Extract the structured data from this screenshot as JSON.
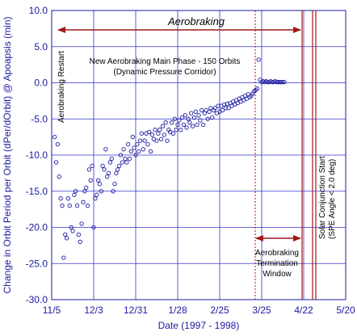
{
  "chart_data": {
    "type": "scatter",
    "xlabel": "Date (1997 - 1998)",
    "ylabel": "Change in Orbit Period per Orbit (dPer/dOrbit) @ Apoapsis (min)",
    "ylim": [
      -30,
      10
    ],
    "yticks": [
      "10.0",
      "5.0",
      "0.0",
      "-5.0",
      "-10.0",
      "-15.0",
      "-20.0",
      "-25.0",
      "-30.0"
    ],
    "xticks": [
      "11/5",
      "12/3",
      "12/31",
      "1/28",
      "2/25",
      "3/25",
      "4/22",
      "5/20"
    ],
    "grid": true,
    "colors": {
      "axis": "#1a1aa0",
      "grid": "#3333cc",
      "marker": "#1a1aa0",
      "event_line": "#a01818",
      "arrow": "#a01818"
    },
    "annotations": {
      "aerobraking": "Aerobraking",
      "main_phase_1": "New Aerobraking Main Phase - 150 Orbits",
      "main_phase_2": "(Dynamic Pressure Corridor)",
      "restart": "Aerobraking Restart",
      "termination_1": "Aerobraking",
      "termination_2": "Termination",
      "termination_3": "Window",
      "conjunction_1": "Solar Conjunction Start",
      "conjunction_2": "(SPE Angle < 2.0 deg)"
    },
    "series": [
      {
        "points": [
          [
            2,
            -7.5
          ],
          [
            3,
            -11
          ],
          [
            4,
            -8.5
          ],
          [
            5,
            -13
          ],
          [
            6,
            -16
          ],
          [
            7,
            -17
          ],
          [
            8,
            -24.2
          ],
          [
            9,
            -21
          ],
          [
            10,
            -21.5
          ],
          [
            11,
            -16
          ],
          [
            12,
            -17
          ],
          [
            13,
            -20
          ],
          [
            14,
            -20.5
          ],
          [
            15,
            -15.5
          ],
          [
            16,
            -15
          ],
          [
            17,
            -17
          ],
          [
            18,
            -21
          ],
          [
            19,
            -22
          ],
          [
            20,
            -19.5
          ],
          [
            21,
            -16.5
          ],
          [
            22,
            -15
          ],
          [
            23,
            -14.5
          ],
          [
            24,
            -17
          ],
          [
            25,
            -12
          ],
          [
            26,
            -13.5
          ],
          [
            27,
            -11.5
          ],
          [
            28,
            -20
          ],
          [
            29,
            -16
          ],
          [
            30,
            -15.5
          ],
          [
            31,
            -13.5
          ],
          [
            32,
            -14
          ],
          [
            33,
            -15
          ],
          [
            34,
            -11.5
          ],
          [
            35,
            -12
          ],
          [
            36,
            -9.2
          ],
          [
            37,
            -13
          ],
          [
            38,
            -12.5
          ],
          [
            39,
            -11
          ],
          [
            40,
            -10.5
          ],
          [
            41,
            -15
          ],
          [
            42,
            -14
          ],
          [
            43,
            -12.5
          ],
          [
            44,
            -12
          ],
          [
            45,
            -11.5
          ],
          [
            46,
            -10
          ],
          [
            47,
            -11
          ],
          [
            48,
            -9.2
          ],
          [
            49,
            -10.5
          ],
          [
            50,
            -11
          ],
          [
            51,
            -8.5
          ],
          [
            52,
            -10.5
          ],
          [
            53,
            -9.5
          ],
          [
            54,
            -7.5
          ],
          [
            55,
            -9
          ],
          [
            56,
            -10
          ],
          [
            57,
            -8.5
          ],
          [
            58,
            -9.5
          ],
          [
            59,
            -8
          ],
          [
            60,
            -7
          ],
          [
            61,
            -9.2
          ],
          [
            62,
            -8
          ],
          [
            63,
            -7
          ],
          [
            64,
            -8.5
          ],
          [
            65,
            -6.8
          ],
          [
            66,
            -9.5
          ],
          [
            67,
            -7.2
          ],
          [
            68,
            -7.8
          ],
          [
            69,
            -6.5
          ],
          [
            70,
            -8
          ],
          [
            71,
            -7
          ],
          [
            72,
            -6.5
          ],
          [
            73,
            -7.8
          ],
          [
            74,
            -6
          ],
          [
            75,
            -7.2
          ],
          [
            76,
            -5.5
          ],
          [
            77,
            -8
          ],
          [
            78,
            -6.5
          ],
          [
            79,
            -6.8
          ],
          [
            80,
            -5.5
          ],
          [
            81,
            -7
          ],
          [
            82,
            -5
          ],
          [
            83,
            -6.5
          ],
          [
            84,
            -5.8
          ],
          [
            85,
            -5.2
          ],
          [
            86,
            -6.5
          ],
          [
            87,
            -4.8
          ],
          [
            88,
            -5.8
          ],
          [
            89,
            -4.5
          ],
          [
            90,
            -6.2
          ],
          [
            91,
            -5
          ],
          [
            92,
            -5.5
          ],
          [
            93,
            -4.2
          ],
          [
            94,
            -6
          ],
          [
            95,
            -4.8
          ],
          [
            96,
            -4
          ],
          [
            97,
            -5.8
          ],
          [
            98,
            -4.5
          ],
          [
            99,
            -5.2
          ],
          [
            100,
            -3.8
          ],
          [
            101,
            -5.8
          ],
          [
            102,
            -4.2
          ],
          [
            103,
            -3.8
          ],
          [
            104,
            -5
          ],
          [
            105,
            -4
          ],
          [
            106,
            -3.5
          ],
          [
            107,
            -4.8
          ],
          [
            108,
            -3.8
          ],
          [
            109,
            -3.5
          ],
          [
            110,
            -4.2
          ],
          [
            111,
            -3.2
          ],
          [
            112,
            -4
          ],
          [
            113,
            -3.2
          ],
          [
            114,
            -3.8
          ],
          [
            115,
            -3
          ],
          [
            116,
            -3.5
          ],
          [
            117,
            -2.9
          ],
          [
            118,
            -3.5
          ],
          [
            119,
            -2.8
          ],
          [
            120,
            -3.2
          ],
          [
            121,
            -2.6
          ],
          [
            122,
            -3
          ],
          [
            123,
            -2.4
          ],
          [
            124,
            -2.8
          ],
          [
            125,
            -2.2
          ],
          [
            126,
            -2.6
          ],
          [
            127,
            -2
          ],
          [
            128,
            -2.4
          ],
          [
            129,
            -1.8
          ],
          [
            130,
            -2.2
          ],
          [
            131,
            -1.6
          ],
          [
            132,
            -2
          ],
          [
            133,
            -1.8
          ],
          [
            134,
            -1.5
          ],
          [
            135,
            -1.2
          ],
          [
            136,
            -1
          ],
          [
            137,
            -0.8
          ],
          [
            138,
            3.2
          ],
          [
            139,
            0.4
          ],
          [
            140,
            0.1
          ],
          [
            141,
            0.2
          ],
          [
            142,
            0.1
          ],
          [
            143,
            0.2
          ],
          [
            144,
            0.1
          ],
          [
            145,
            0.1
          ],
          [
            146,
            0.2
          ],
          [
            147,
            0.1
          ],
          [
            148,
            0.1
          ],
          [
            149,
            0.2
          ],
          [
            150,
            0.1
          ],
          [
            151,
            0.1
          ],
          [
            152,
            0.1
          ],
          [
            153,
            0.1
          ],
          [
            154,
            0.1
          ],
          [
            155,
            0.1
          ]
        ]
      }
    ]
  }
}
